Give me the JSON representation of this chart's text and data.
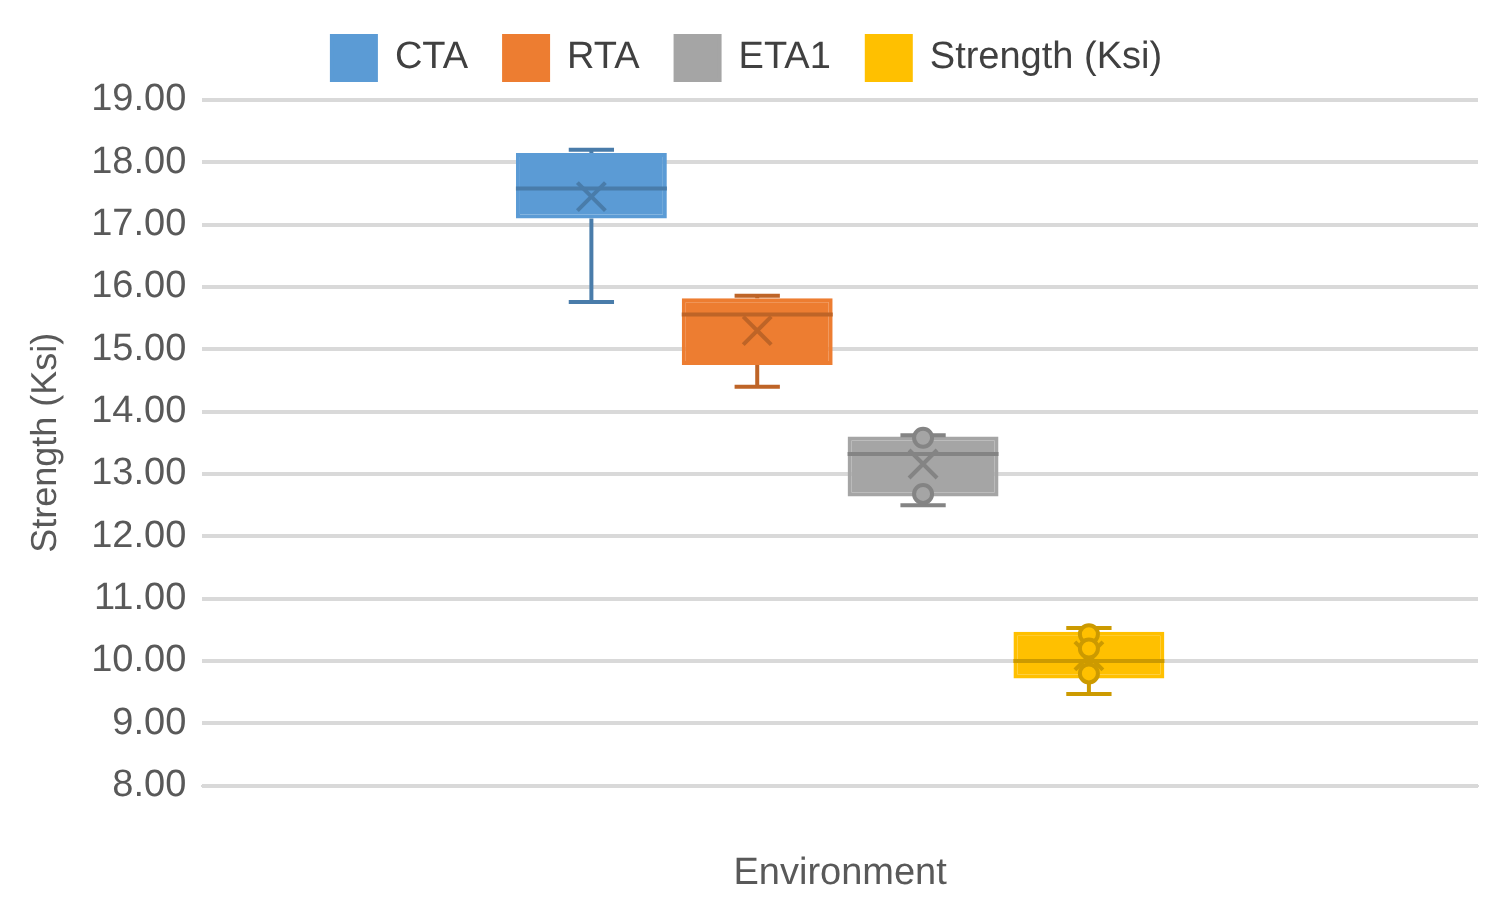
{
  "chart_data": {
    "type": "box",
    "xlabel": "Environment",
    "ylabel": "Strength (Ksi)",
    "categories": [
      null
    ],
    "ylim": [
      8,
      19
    ],
    "yticks": [
      {
        "value": 8,
        "label": "8.00"
      },
      {
        "value": 9,
        "label": "9.00"
      },
      {
        "value": 10,
        "label": "10.00"
      },
      {
        "value": 11,
        "label": "11.00"
      },
      {
        "value": 12,
        "label": "12.00"
      },
      {
        "value": 13,
        "label": "13.00"
      },
      {
        "value": 14,
        "label": "14.00"
      },
      {
        "value": 15,
        "label": "15.00"
      },
      {
        "value": 16,
        "label": "16.00"
      },
      {
        "value": 17,
        "label": "17.00"
      },
      {
        "value": 18,
        "label": "18.00"
      },
      {
        "value": 19,
        "label": "19.00"
      }
    ],
    "grid": "y",
    "legend": "top",
    "series": [
      {
        "name": "CTA",
        "color": "#5b9bd5",
        "boxes": [
          {
            "low": 15.76,
            "q1": 17.1,
            "median": 17.58,
            "q3": 18.15,
            "high": 18.2,
            "mean": 17.45
          }
        ]
      },
      {
        "name": "RTA",
        "color": "#ed7d31",
        "boxes": [
          {
            "low": 14.4,
            "q1": 14.75,
            "median": 15.56,
            "q3": 15.82,
            "high": 15.86,
            "mean": 15.3
          }
        ]
      },
      {
        "name": "ETA1",
        "color": "#a5a5a5",
        "boxes": [
          {
            "low": 12.5,
            "q1": 12.64,
            "median": 13.32,
            "q3": 13.6,
            "high": 13.62,
            "mean": 13.16,
            "outliers": [
              13.58,
              12.68
            ]
          }
        ]
      },
      {
        "name": "Strength (Ksi)",
        "color": "#ffc000",
        "boxes": [
          {
            "low": 9.47,
            "q1": 9.72,
            "median": 10.0,
            "q3": 10.47,
            "high": 10.53,
            "mean": 10.08,
            "outliers": [
              10.43,
              10.2,
              9.8
            ]
          }
        ]
      }
    ]
  }
}
